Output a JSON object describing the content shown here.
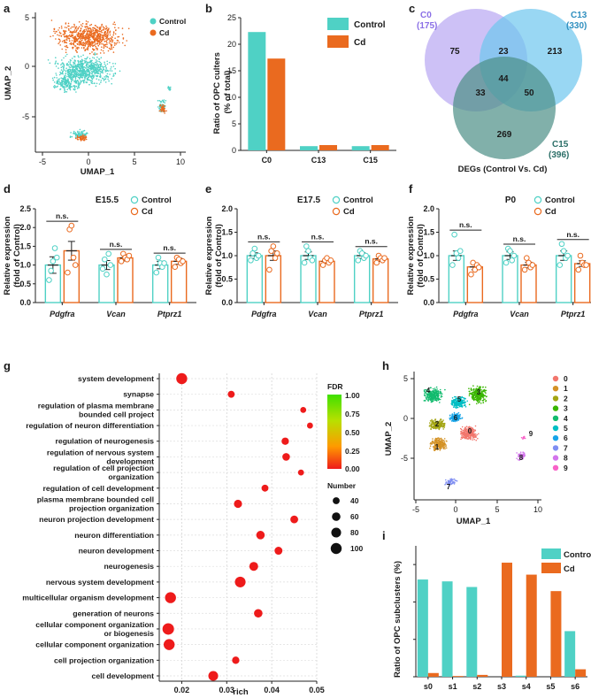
{
  "colors": {
    "control": "#4fd1c5",
    "cd": "#ea6a1f",
    "venn_c0": "#b8a7f2",
    "venn_c13": "#6ec6ee",
    "venn_c15": "#4c8f86"
  },
  "panels": {
    "a": "a",
    "b": "b",
    "c": "c",
    "d": "d",
    "e": "e",
    "f": "f",
    "g": "g",
    "h": "h",
    "i": "i"
  },
  "chart_data": [
    {
      "id": "a",
      "type": "scatter",
      "title": "",
      "xlabel": "UMAP_1",
      "ylabel": "UMAP_2",
      "xticks": [
        "-5",
        "0",
        "5",
        "10"
      ],
      "yticks": [
        "5",
        "0",
        "-5"
      ],
      "legend": [
        "Control",
        "Cd"
      ]
    },
    {
      "id": "b",
      "type": "bar",
      "title": "",
      "ylabel": "Ratio of OPC culters\n(% of total)",
      "categories": [
        "C0",
        "C13",
        "C15"
      ],
      "ylim": [
        0,
        25
      ],
      "yticks": [
        "0",
        "5",
        "10",
        "15",
        "20",
        "25"
      ],
      "series": [
        {
          "name": "Control",
          "values": [
            22.3,
            0.8,
            0.8
          ]
        },
        {
          "name": "Cd",
          "values": [
            17.3,
            1.0,
            1.0
          ]
        }
      ]
    },
    {
      "id": "c",
      "type": "venn",
      "title": "DEGs (Control Vs. Cd)",
      "sets": [
        {
          "name": "C0",
          "count": "(175)"
        },
        {
          "name": "C13",
          "count": "(330)"
        },
        {
          "name": "C15",
          "count": "(396)"
        }
      ],
      "regions": {
        "c0_only": "75",
        "c13_only": "213",
        "c15_only": "269",
        "c0_c13": "23",
        "c0_c15": "33",
        "c13_c15": "50",
        "all": "44"
      }
    },
    {
      "id": "d",
      "type": "bar",
      "title": "E15.5",
      "ylabel": "Relative expression\n(fold of Control)",
      "categories": [
        "Pdgfra",
        "Vcan",
        "Ptprz1"
      ],
      "ylim": [
        0,
        2.5
      ],
      "yticks": [
        "0.0",
        "0.5",
        "1.0",
        "1.5",
        "2.0",
        "2.5"
      ],
      "series": [
        {
          "name": "Control",
          "values": [
            1.0,
            1.0,
            1.0
          ],
          "errors": [
            0.22,
            0.12,
            0.1
          ],
          "points": [
            [
              0.6,
              0.85,
              1.1,
              1.45,
              1.2
            ],
            [
              0.9,
              1.15,
              0.75,
              1.3,
              1.0
            ],
            [
              0.8,
              1.2,
              1.05,
              0.95,
              1.05
            ]
          ]
        },
        {
          "name": "Cd",
          "values": [
            1.38,
            1.19,
            1.1
          ],
          "errors": [
            0.25,
            0.08,
            0.08
          ],
          "points": [
            [
              0.8,
              1.95,
              2.05,
              1.2,
              1.0
            ],
            [
              1.1,
              1.3,
              1.2,
              1.15,
              1.25
            ],
            [
              0.95,
              1.2,
              1.15,
              1.05,
              1.1
            ]
          ]
        }
      ],
      "annotations": [
        "n.s.",
        "n.s.",
        "n.s."
      ]
    },
    {
      "id": "e",
      "type": "bar",
      "title": "E17.5",
      "ylabel": "Relative expression\n(fold of Control)",
      "categories": [
        "Pdgfra",
        "Vcan",
        "Ptprz1"
      ],
      "ylim": [
        0,
        2.0
      ],
      "yticks": [
        "0.0",
        "0.5",
        "1.0",
        "1.5",
        "2.0"
      ],
      "series": [
        {
          "name": "Control",
          "values": [
            1.0,
            1.0,
            1.0
          ],
          "errors": [
            0.06,
            0.08,
            0.06
          ],
          "points": [
            [
              0.9,
              1.05,
              1.15,
              0.95,
              1.0
            ],
            [
              0.85,
              1.2,
              1.1,
              0.95,
              0.9
            ],
            [
              0.9,
              1.1,
              1.05,
              0.95,
              1.0
            ]
          ]
        },
        {
          "name": "Cd",
          "values": [
            1.0,
            0.88,
            0.93
          ],
          "errors": [
            0.1,
            0.04,
            0.05
          ],
          "points": [
            [
              0.7,
              1.1,
              1.2,
              0.95,
              1.05
            ],
            [
              0.8,
              0.9,
              0.95,
              0.85,
              0.9
            ],
            [
              0.85,
              1.0,
              0.95,
              0.9,
              0.95
            ]
          ]
        }
      ],
      "annotations": [
        "n.s.",
        "n.s.",
        "n.s."
      ]
    },
    {
      "id": "f",
      "type": "bar",
      "title": "P0",
      "ylabel": "Relative expression\n(fold of Control)",
      "categories": [
        "Pdgfra",
        "Vcan",
        "Ptprz1"
      ],
      "ylim": [
        0,
        2.0
      ],
      "yticks": [
        "0.0",
        "0.5",
        "1.0",
        "1.5",
        "2.0"
      ],
      "series": [
        {
          "name": "Control",
          "values": [
            1.0,
            1.0,
            1.0
          ],
          "errors": [
            0.1,
            0.08,
            0.1
          ],
          "points": [
            [
              0.8,
              1.45,
              1.05,
              0.95,
              1.1
            ],
            [
              0.85,
              1.15,
              1.1,
              0.9,
              1.0
            ],
            [
              0.8,
              1.25,
              1.1,
              0.95,
              1.0
            ]
          ]
        },
        {
          "name": "Cd",
          "values": [
            0.76,
            0.8,
            0.83
          ],
          "errors": [
            0.06,
            0.06,
            0.06
          ],
          "points": [
            [
              0.6,
              0.85,
              0.7,
              0.8,
              0.75
            ],
            [
              0.7,
              0.95,
              0.85,
              0.75,
              0.8
            ],
            [
              0.7,
              1.0,
              0.85,
              0.8,
              0.8
            ]
          ]
        }
      ],
      "annotations": [
        "n.s.",
        "n.s.",
        "n.s."
      ]
    },
    {
      "id": "g",
      "type": "scatter",
      "title": "",
      "xlabel": "rich",
      "xlim": [
        0.015,
        0.05
      ],
      "xticks": [
        "0.02",
        "0.03",
        "0.04",
        "0.05"
      ],
      "color_legend": {
        "title": "FDR",
        "ticks": [
          "1.00",
          "0.75",
          "0.50",
          "0.25",
          "0.00"
        ]
      },
      "size_legend": {
        "title": "Number",
        "ticks": [
          "40",
          "60",
          "80",
          "100"
        ]
      },
      "terms": [
        "system development",
        "synapse",
        "regulation of plasma membrane bounded cell project",
        "regulation of neuron differentiation",
        "regulation of neurogenesis",
        "regulation of nervous system development",
        "regulation of cell projection organization",
        "regulation of cell development",
        "plasma membrane bounded cell projection organization",
        "neuron projection development",
        "neuron differentiation",
        "neuron development",
        "neurogenesis",
        "nervous system development",
        "multicellular organism development",
        "generation of neurons",
        "cellular component organization or biogenesis",
        "cellular component organization",
        "cell projection organization",
        "cell development"
      ],
      "term_lines": [
        [
          "system development"
        ],
        [
          "synapse"
        ],
        [
          "regulation of plasma membrane",
          "bounded cell project"
        ],
        [
          "regulation of neuron differentiation"
        ],
        [
          "regulation of neurogenesis"
        ],
        [
          "regulation of nervous system",
          "development"
        ],
        [
          "regulation of cell projection",
          "organization"
        ],
        [
          "regulation of cell development"
        ],
        [
          "plasma membrane bounded cell",
          "projection organization"
        ],
        [
          "neuron projection development"
        ],
        [
          "neuron differentiation"
        ],
        [
          "neuron development"
        ],
        [
          "neurogenesis"
        ],
        [
          "nervous system development"
        ],
        [
          "multicellular organism development"
        ],
        [
          "generation of neurons"
        ],
        [
          "cellular component organization",
          "or biogenesis"
        ],
        [
          "cellular component organization"
        ],
        [
          "cell projection organization"
        ],
        [
          "cell development"
        ]
      ],
      "rich": [
        0.02,
        0.031,
        0.047,
        0.0485,
        0.043,
        0.0432,
        0.0465,
        0.0385,
        0.0325,
        0.045,
        0.0375,
        0.0415,
        0.036,
        0.033,
        0.0175,
        0.037,
        0.017,
        0.0172,
        0.032,
        0.027
      ],
      "number": [
        100,
        40,
        30,
        30,
        45,
        48,
        30,
        40,
        55,
        50,
        60,
        52,
        65,
        95,
        100,
        60,
        110,
        100,
        45,
        80
      ],
      "fdr": [
        0,
        0,
        0,
        0,
        0,
        0,
        0,
        0,
        0,
        0,
        0,
        0,
        0,
        0,
        0,
        0,
        0,
        0,
        0,
        0
      ]
    },
    {
      "id": "h",
      "type": "scatter",
      "title": "",
      "xlabel": "UMAP_1",
      "ylabel": "UMAP_2",
      "xticks": [
        "-5",
        "0",
        "5",
        "10"
      ],
      "yticks": [
        "5",
        "0",
        "-5"
      ],
      "legend": [
        "0",
        "1",
        "2",
        "3",
        "4",
        "5",
        "6",
        "7",
        "8",
        "9"
      ],
      "cluster_colors": [
        "#f2766d",
        "#d49226",
        "#a3a512",
        "#39b600",
        "#12bb6e",
        "#00bfc4",
        "#17a4e8",
        "#7f8ef2",
        "#d375ec",
        "#f862c8"
      ]
    },
    {
      "id": "i",
      "type": "bar",
      "title": "",
      "ylabel": "Ratio of OPC subclusters (%)",
      "categories": [
        "s0",
        "s1",
        "s2",
        "s3",
        "s4",
        "s5",
        "s6"
      ],
      "ylim": [
        0,
        35
      ],
      "series": [
        {
          "name": "Control",
          "values": [
            26,
            25.5,
            24,
            0,
            0.3,
            0,
            12.2
          ]
        },
        {
          "name": "Cd",
          "values": [
            1,
            0.2,
            0.5,
            30.5,
            27.3,
            22.9,
            2
          ]
        }
      ]
    }
  ]
}
